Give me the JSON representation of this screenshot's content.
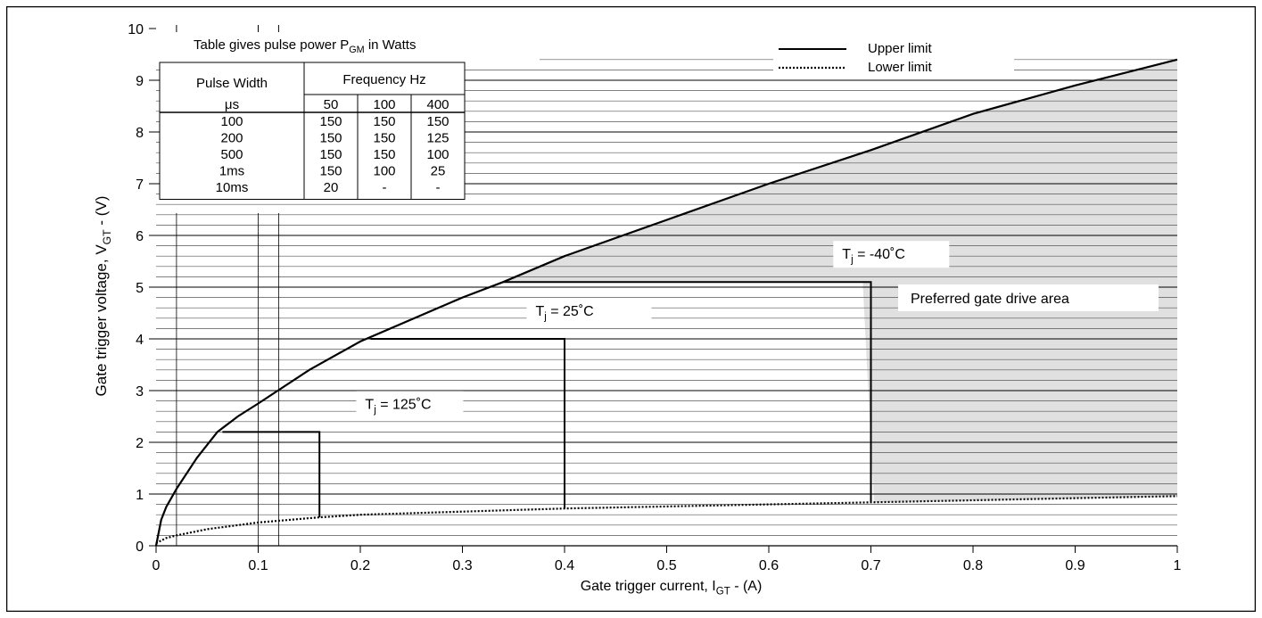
{
  "chart_data": {
    "type": "line",
    "xlabel": {
      "main": "Gate trigger current, I",
      "sub": "GT",
      "tail": " - (A)"
    },
    "ylabel": {
      "main": "Gate trigger voltage, V",
      "sub": "GT",
      "tail": " - (V)"
    },
    "xlim": [
      0,
      1
    ],
    "ylim": [
      0,
      10
    ],
    "x_ticks": [
      "0",
      "0.1",
      "0.2",
      "0.3",
      "0.4",
      "0.5",
      "0.6",
      "0.7",
      "0.8",
      "0.9",
      "1"
    ],
    "y_ticks": [
      "0",
      "1",
      "2",
      "3",
      "4",
      "5",
      "6",
      "7",
      "8",
      "9",
      "10"
    ],
    "legend": [
      {
        "label": "Upper limit",
        "style": "solid"
      },
      {
        "label": "Lower limit",
        "style": "dotted"
      }
    ],
    "series": [
      {
        "name": "Upper limit",
        "x": [
          0,
          0.005,
          0.01,
          0.02,
          0.04,
          0.06,
          0.08,
          0.1,
          0.15,
          0.2,
          0.3,
          0.34,
          0.4,
          0.5,
          0.6,
          0.7,
          0.8,
          0.9,
          1.0
        ],
        "y": [
          0,
          0.5,
          0.75,
          1.1,
          1.7,
          2.2,
          2.5,
          2.75,
          3.4,
          3.95,
          4.8,
          5.1,
          5.6,
          6.3,
          7.0,
          7.65,
          8.35,
          8.9,
          9.4
        ]
      },
      {
        "name": "Lower limit",
        "x": [
          0,
          0.01,
          0.02,
          0.05,
          0.1,
          0.16,
          0.2,
          0.3,
          0.4,
          0.5,
          0.6,
          0.7,
          0.8,
          0.9,
          1.0
        ],
        "y": [
          0.05,
          0.15,
          0.2,
          0.32,
          0.45,
          0.55,
          0.6,
          0.66,
          0.72,
          0.76,
          0.8,
          0.84,
          0.88,
          0.92,
          0.96
        ]
      }
    ],
    "temperature_boxes": [
      {
        "label_main": "T",
        "label_sub": "j",
        "label_tail": " = 125˚C",
        "i_max": 0.16,
        "v_max": 2.2,
        "i_top_start": 0.065
      },
      {
        "label_main": "T",
        "label_sub": "j",
        "label_tail": " = 25˚C",
        "i_max": 0.4,
        "v_max": 4.0,
        "i_top_start": 0.21
      },
      {
        "label_main": "T",
        "label_sub": "j",
        "label_tail": " = -40˚C",
        "i_max": 0.7,
        "v_max": 5.1,
        "i_top_start": 0.34
      }
    ],
    "preferred_area_label": "Preferred gate drive area",
    "grid": "horizontal"
  },
  "table": {
    "title_main": "Table gives pulse power P",
    "title_sub": "GM",
    "title_tail": " in Watts",
    "col_header_1": "Pulse Width",
    "col_header_1_unit": "μs",
    "col_header_group": "Frequency Hz",
    "freq_cols": [
      "50",
      "100",
      "400"
    ],
    "rows": [
      [
        "100",
        "150",
        "150",
        "150"
      ],
      [
        "200",
        "150",
        "150",
        "125"
      ],
      [
        "500",
        "150",
        "150",
        "100"
      ],
      [
        "1ms",
        "150",
        "100",
        "25"
      ],
      [
        "10ms",
        "20",
        "-",
        "-"
      ]
    ]
  }
}
